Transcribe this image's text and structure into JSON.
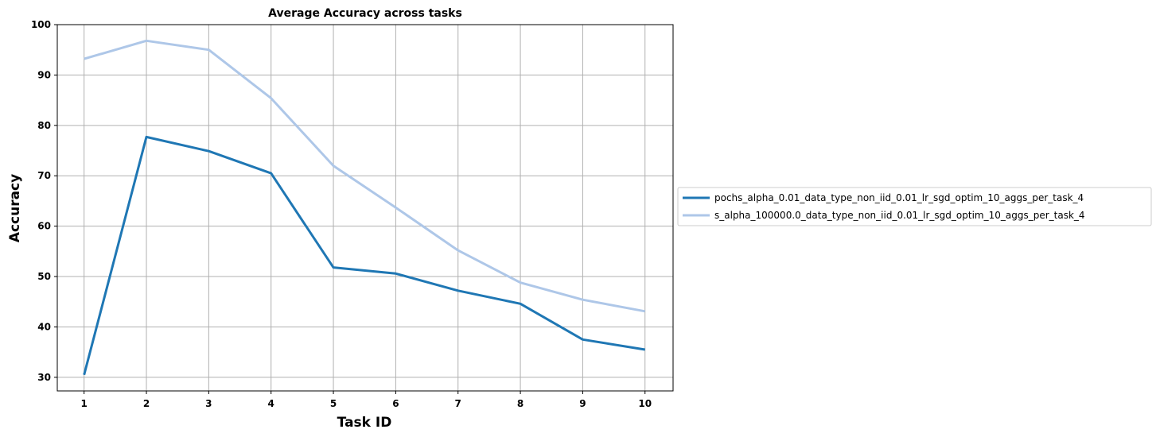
{
  "chart_data": {
    "type": "line",
    "title": "Average Accuracy across tasks",
    "xlabel": "Task ID",
    "ylabel": "Accuracy",
    "x": [
      1,
      2,
      3,
      4,
      5,
      6,
      7,
      8,
      9,
      10
    ],
    "xticks": [
      "1",
      "2",
      "3",
      "4",
      "5",
      "6",
      "7",
      "8",
      "9",
      "10"
    ],
    "yticks": [
      "30",
      "40",
      "50",
      "60",
      "70",
      "80",
      "90",
      "100"
    ],
    "ylim": [
      27.3,
      100
    ],
    "xlim": [
      0.57,
      10.45
    ],
    "grid": true,
    "legend_position": "center-left outside right",
    "series": [
      {
        "name": "pochs_alpha_0.01_data_type_non_iid_0.01_lr_sgd_optim_10_aggs_per_task_4",
        "color": "#1f77b4",
        "values": [
          30.5,
          77.7,
          74.9,
          70.5,
          51.8,
          50.6,
          47.2,
          44.6,
          37.5,
          35.5
        ]
      },
      {
        "name": "s_alpha_100000.0_data_type_non_iid_0.01_lr_sgd_optim_10_aggs_per_task_4",
        "color": "#aec7e8",
        "values": [
          93.2,
          96.8,
          95.0,
          85.4,
          72.0,
          63.7,
          55.2,
          48.8,
          45.4,
          43.1
        ]
      }
    ]
  }
}
